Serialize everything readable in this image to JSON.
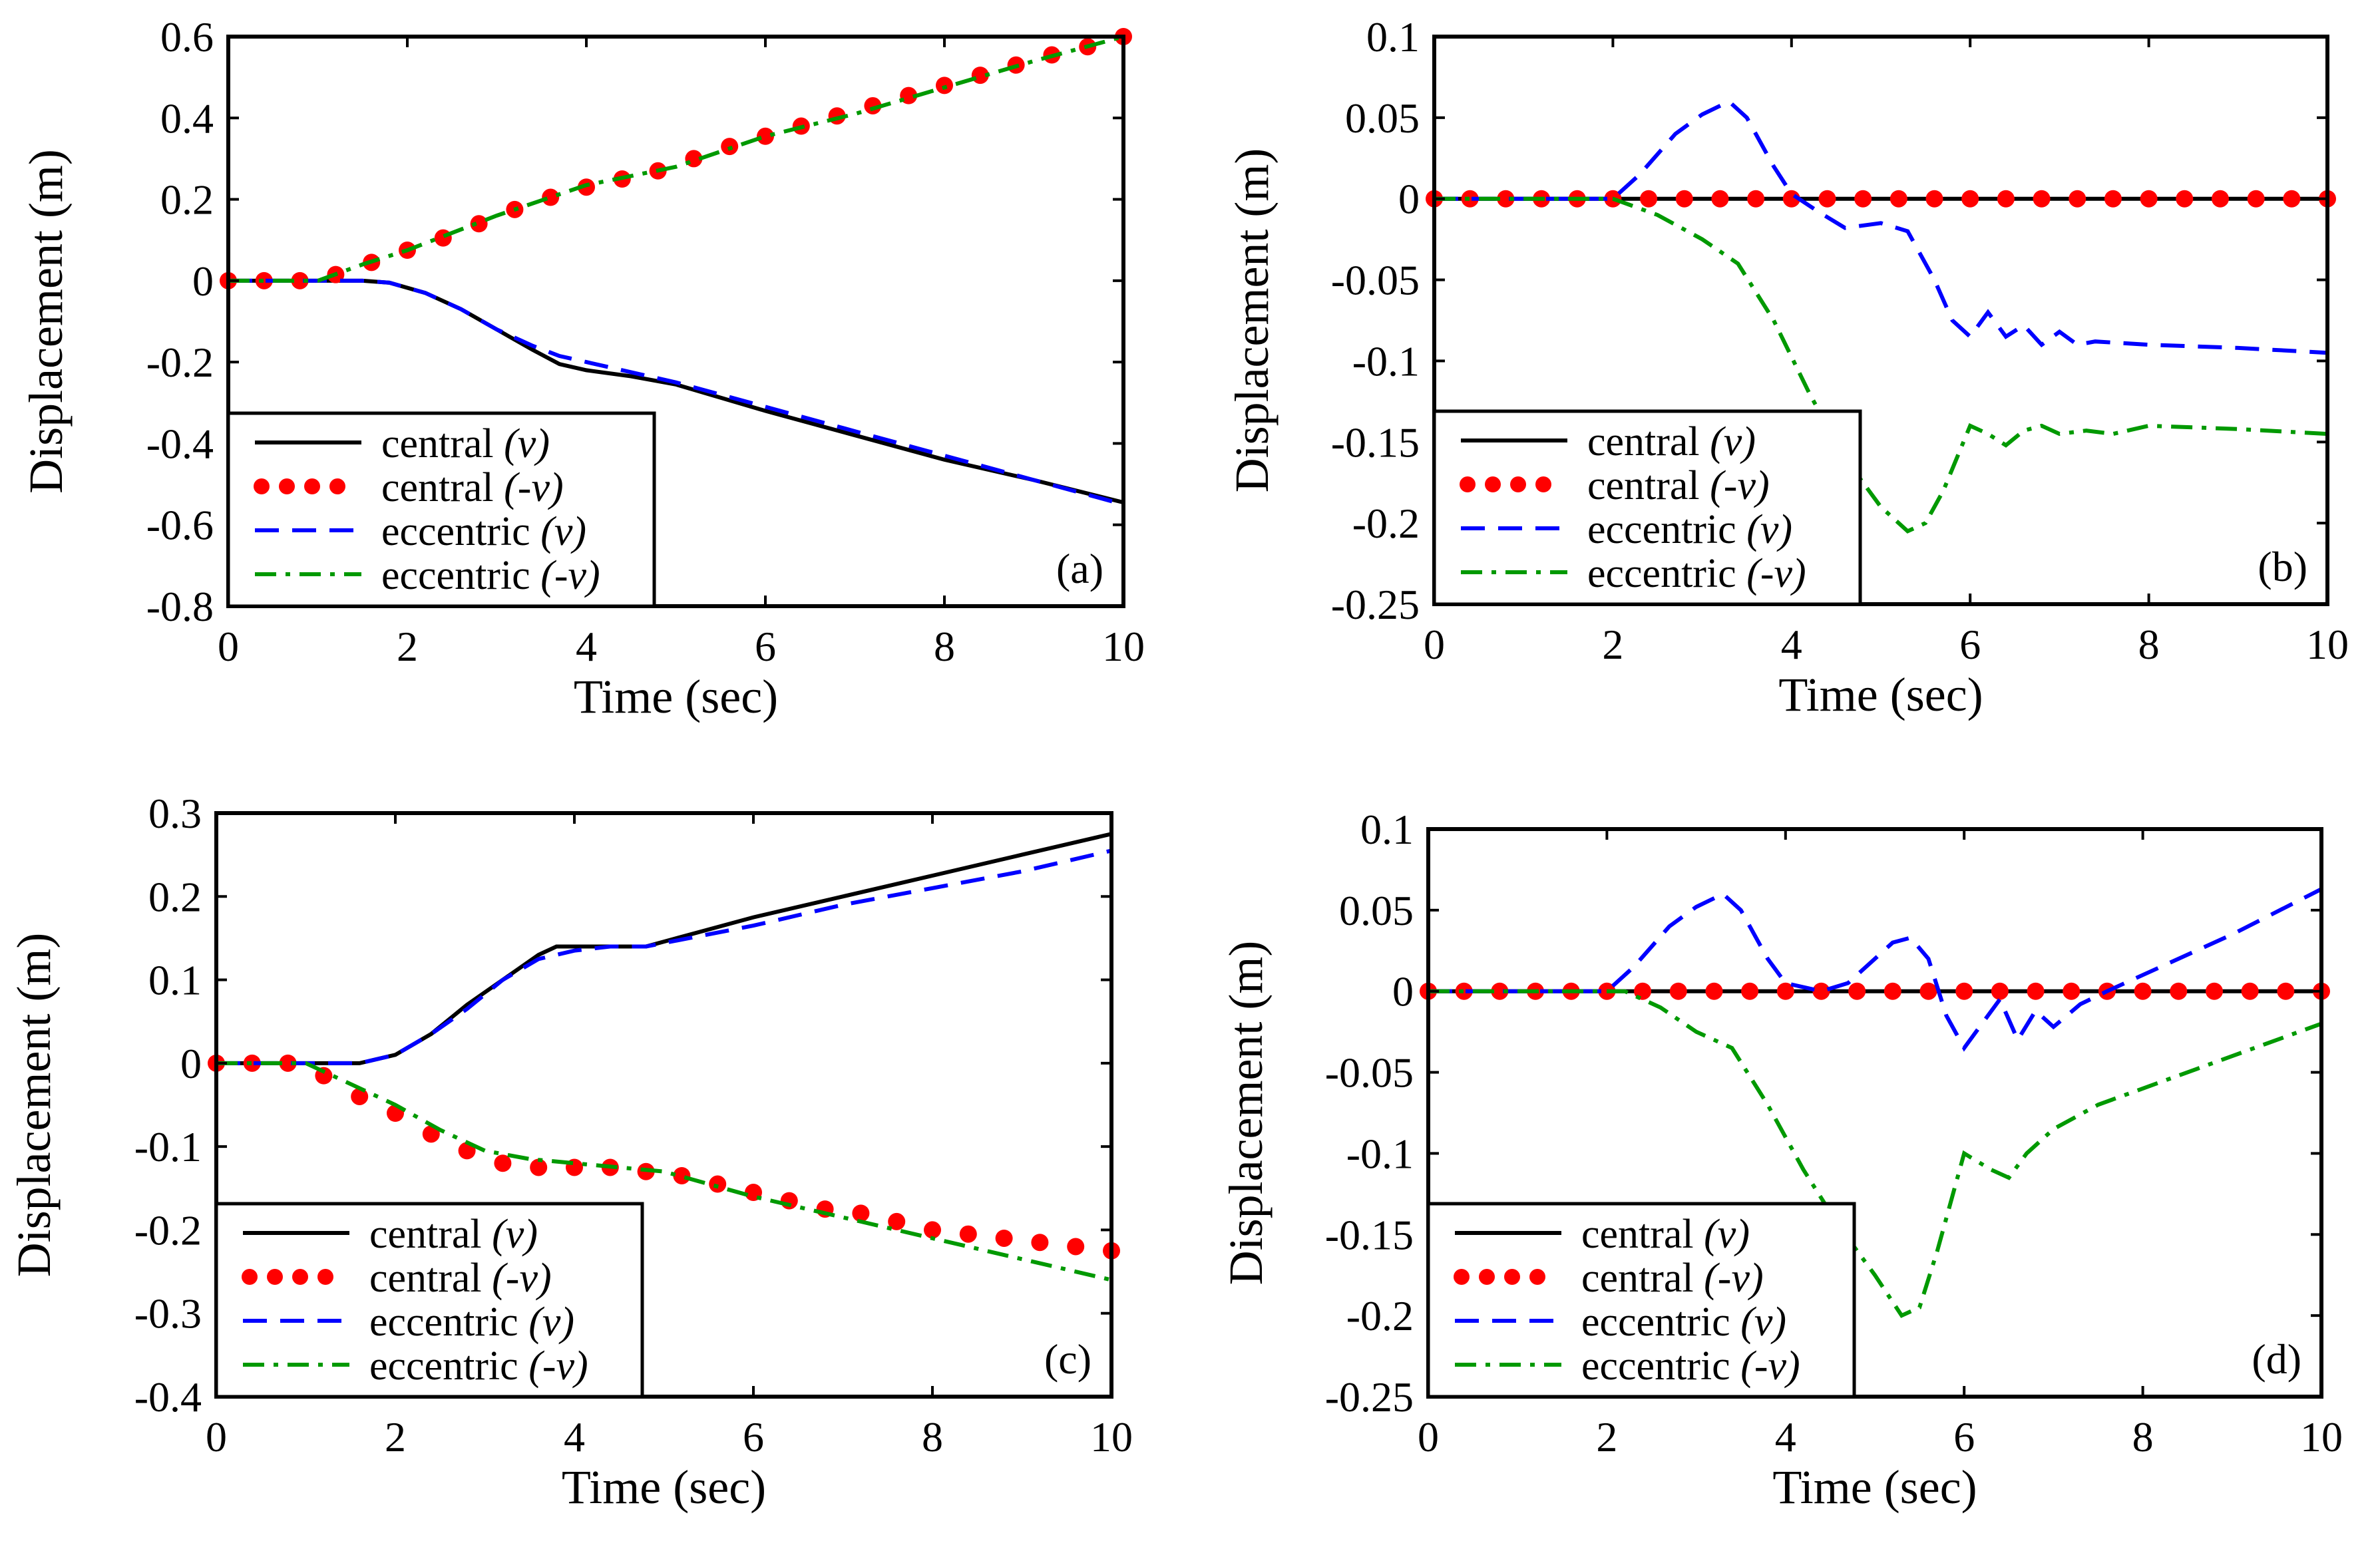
{
  "styles": {
    "central_v": {
      "color": "#000000",
      "kind": "solid"
    },
    "central_neg_v": {
      "color": "#ff0000",
      "kind": "dots"
    },
    "eccentric_v": {
      "color": "#0000ff",
      "kind": "dashed"
    },
    "eccentric_neg_v": {
      "color": "#009900",
      "kind": "dashdot"
    }
  },
  "chart_data": [
    {
      "type": "line",
      "panel_label": "(a)",
      "xlabel": "Time (sec)",
      "ylabel": "Displacement (m)",
      "xlim": [
        0,
        10
      ],
      "ylim": [
        -0.8,
        0.6
      ],
      "xticks": [
        0,
        2,
        4,
        6,
        8,
        10
      ],
      "yticks": [
        -0.8,
        -0.6,
        -0.4,
        -0.2,
        0,
        0.2,
        0.4,
        0.6
      ],
      "ytick_labels": [
        "-0.8",
        "-0.6",
        "-0.4",
        "-0.2",
        "0",
        "0.2",
        "0.4",
        "0.6"
      ],
      "legend": "bottom-left",
      "series": [
        {
          "name": "central",
          "suffix": "(v)",
          "style": "central_v",
          "x": [
            0,
            1.5,
            1.8,
            2.2,
            2.6,
            3.0,
            3.4,
            3.7,
            4.0,
            4.5,
            5.0,
            6.0,
            7.0,
            8.0,
            9.0,
            10.0
          ],
          "y": [
            0,
            0,
            -0.005,
            -0.03,
            -0.07,
            -0.12,
            -0.17,
            -0.205,
            -0.22,
            -0.235,
            -0.255,
            -0.32,
            -0.38,
            -0.44,
            -0.49,
            -0.545
          ]
        },
        {
          "name": "central",
          "suffix": "(-v)",
          "style": "central_neg_v",
          "x": [
            0,
            0.4,
            0.8,
            1.2,
            1.6,
            2.0,
            2.4,
            2.8,
            3.2,
            3.6,
            4.0,
            4.4,
            4.8,
            5.2,
            5.6,
            6.0,
            6.4,
            6.8,
            7.2,
            7.6,
            8.0,
            8.4,
            8.8,
            9.2,
            9.6,
            10.0
          ],
          "y": [
            0,
            0,
            0,
            0.015,
            0.045,
            0.075,
            0.105,
            0.14,
            0.175,
            0.205,
            0.23,
            0.25,
            0.27,
            0.3,
            0.33,
            0.355,
            0.38,
            0.405,
            0.43,
            0.455,
            0.48,
            0.505,
            0.53,
            0.555,
            0.575,
            0.6
          ]
        },
        {
          "name": "eccentric",
          "suffix": "(v)",
          "style": "eccentric_v",
          "x": [
            0,
            1.5,
            1.8,
            2.2,
            2.6,
            3.0,
            3.4,
            3.7,
            4.0,
            4.5,
            5.0,
            6.0,
            7.0,
            8.0,
            9.0,
            10.0
          ],
          "y": [
            0,
            0,
            -0.005,
            -0.03,
            -0.07,
            -0.12,
            -0.16,
            -0.185,
            -0.2,
            -0.225,
            -0.25,
            -0.31,
            -0.37,
            -0.43,
            -0.49,
            -0.55
          ]
        },
        {
          "name": "eccentric",
          "suffix": "(-v)",
          "style": "eccentric_neg_v",
          "x": [
            0,
            1.0,
            1.5,
            2.0,
            3.0,
            4.0,
            5.0,
            6.0,
            7.0,
            8.0,
            9.0,
            10.0
          ],
          "y": [
            0,
            0,
            0.04,
            0.075,
            0.16,
            0.235,
            0.28,
            0.355,
            0.41,
            0.475,
            0.54,
            0.6
          ]
        }
      ]
    },
    {
      "type": "line",
      "panel_label": "(b)",
      "xlabel": "Time (sec)",
      "ylabel": "Displacement (m)",
      "xlim": [
        0,
        10
      ],
      "ylim": [
        -0.25,
        0.1
      ],
      "xticks": [
        0,
        2,
        4,
        6,
        8,
        10
      ],
      "yticks": [
        -0.25,
        -0.2,
        -0.15,
        -0.1,
        -0.05,
        0,
        0.05,
        0.1
      ],
      "ytick_labels": [
        "-0.25",
        "-0.2",
        "-0.15",
        "-0.1",
        "-0.05",
        "0",
        "0.05",
        "0.1"
      ],
      "legend": "bottom-left",
      "series": [
        {
          "name": "central",
          "suffix": "(v)",
          "style": "central_v",
          "x": [
            0,
            10
          ],
          "y": [
            0,
            0
          ]
        },
        {
          "name": "central",
          "suffix": "(-v)",
          "style": "central_neg_v",
          "x": [
            0,
            0.4,
            0.8,
            1.2,
            1.6,
            2.0,
            2.4,
            2.8,
            3.2,
            3.6,
            4.0,
            4.4,
            4.8,
            5.2,
            5.6,
            6.0,
            6.4,
            6.8,
            7.2,
            7.6,
            8.0,
            8.4,
            8.8,
            9.2,
            9.6,
            10.0
          ],
          "y": [
            0,
            0,
            0,
            0,
            0,
            0,
            0,
            0,
            0,
            0,
            0,
            0,
            0,
            0,
            0,
            0,
            0,
            0,
            0,
            0,
            0,
            0,
            0,
            0,
            0,
            0
          ]
        },
        {
          "name": "eccentric",
          "suffix": "(v)",
          "style": "eccentric_v",
          "x": [
            0,
            2.0,
            2.3,
            2.7,
            3.0,
            3.3,
            3.5,
            3.8,
            4.0,
            4.3,
            4.6,
            5.0,
            5.3,
            5.6,
            5.8,
            6.0,
            6.2,
            6.4,
            6.6,
            6.8,
            7.0,
            7.2,
            7.4,
            8.0,
            9.0,
            10.0
          ],
          "y": [
            0,
            0,
            0.015,
            0.04,
            0.052,
            0.06,
            0.05,
            0.02,
            0.003,
            -0.008,
            -0.018,
            -0.015,
            -0.02,
            -0.05,
            -0.075,
            -0.085,
            -0.07,
            -0.085,
            -0.078,
            -0.09,
            -0.082,
            -0.09,
            -0.088,
            -0.09,
            -0.092,
            -0.095
          ]
        },
        {
          "name": "eccentric",
          "suffix": "(-v)",
          "style": "eccentric_neg_v",
          "x": [
            0,
            2.0,
            2.5,
            3.0,
            3.4,
            3.8,
            4.2,
            4.6,
            5.0,
            5.3,
            5.5,
            5.7,
            6.0,
            6.2,
            6.4,
            6.6,
            6.8,
            7.0,
            7.3,
            7.6,
            8.0,
            9.0,
            10.0
          ],
          "y": [
            0,
            0,
            -0.01,
            -0.025,
            -0.04,
            -0.075,
            -0.12,
            -0.16,
            -0.19,
            -0.205,
            -0.2,
            -0.18,
            -0.14,
            -0.145,
            -0.152,
            -0.143,
            -0.14,
            -0.145,
            -0.143,
            -0.145,
            -0.14,
            -0.142,
            -0.145
          ]
        }
      ]
    },
    {
      "type": "line",
      "panel_label": "(c)",
      "xlabel": "Time (sec)",
      "ylabel": "Displacement (m)",
      "xlim": [
        0,
        10
      ],
      "ylim": [
        -0.4,
        0.3
      ],
      "xticks": [
        0,
        2,
        4,
        6,
        8,
        10
      ],
      "yticks": [
        -0.4,
        -0.3,
        -0.2,
        -0.1,
        0,
        0.1,
        0.2,
        0.3
      ],
      "ytick_labels": [
        "-0.4",
        "-0.3",
        "-0.2",
        "-0.1",
        "0",
        "0.1",
        "0.2",
        "0.3"
      ],
      "legend": "bottom-left",
      "series": [
        {
          "name": "central",
          "suffix": "(v)",
          "style": "central_v",
          "x": [
            0,
            1.6,
            2.0,
            2.4,
            2.8,
            3.2,
            3.6,
            3.8,
            4.2,
            4.8,
            6.0,
            7.0,
            8.0,
            9.0,
            10.0
          ],
          "y": [
            0,
            0,
            0.01,
            0.035,
            0.07,
            0.1,
            0.13,
            0.14,
            0.14,
            0.14,
            0.175,
            0.2,
            0.225,
            0.25,
            0.275
          ]
        },
        {
          "name": "central",
          "suffix": "(-v)",
          "style": "central_neg_v",
          "x": [
            0,
            0.4,
            0.8,
            1.2,
            1.6,
            2.0,
            2.4,
            2.8,
            3.2,
            3.6,
            4.0,
            4.4,
            4.8,
            5.2,
            5.6,
            6.0,
            6.4,
            6.8,
            7.2,
            7.6,
            8.0,
            8.4,
            8.8,
            9.2,
            9.6,
            10.0
          ],
          "y": [
            0,
            0,
            0,
            -0.015,
            -0.04,
            -0.06,
            -0.085,
            -0.105,
            -0.12,
            -0.125,
            -0.125,
            -0.125,
            -0.13,
            -0.135,
            -0.145,
            -0.155,
            -0.165,
            -0.175,
            -0.18,
            -0.19,
            -0.2,
            -0.205,
            -0.21,
            -0.215,
            -0.22,
            -0.225
          ]
        },
        {
          "name": "eccentric",
          "suffix": "(v)",
          "style": "eccentric_v",
          "x": [
            0,
            1.6,
            2.0,
            2.4,
            2.8,
            3.2,
            3.6,
            4.0,
            4.4,
            4.8,
            6.0,
            7.0,
            8.0,
            9.0,
            10.0
          ],
          "y": [
            0,
            0,
            0.01,
            0.035,
            0.065,
            0.1,
            0.125,
            0.135,
            0.14,
            0.14,
            0.165,
            0.19,
            0.21,
            0.23,
            0.255
          ]
        },
        {
          "name": "eccentric",
          "suffix": "(-v)",
          "style": "eccentric_neg_v",
          "x": [
            0,
            1.0,
            1.5,
            2.0,
            2.5,
            3.0,
            3.5,
            4.0,
            4.5,
            5.0,
            6.0,
            7.0,
            8.0,
            9.0,
            10.0
          ],
          "y": [
            0,
            0,
            -0.025,
            -0.05,
            -0.08,
            -0.105,
            -0.115,
            -0.12,
            -0.125,
            -0.13,
            -0.16,
            -0.185,
            -0.21,
            -0.235,
            -0.26
          ]
        }
      ]
    },
    {
      "type": "line",
      "panel_label": "(d)",
      "xlabel": "Time (sec)",
      "ylabel": "Displacement (m)",
      "xlim": [
        0,
        10
      ],
      "ylim": [
        -0.25,
        0.1
      ],
      "xticks": [
        0,
        2,
        4,
        6,
        8,
        10
      ],
      "yticks": [
        -0.25,
        -0.2,
        -0.15,
        -0.1,
        -0.05,
        0,
        0.05,
        0.1
      ],
      "ytick_labels": [
        "-0.25",
        "-0.2",
        "-0.15",
        "-0.1",
        "-0.05",
        "0",
        "0.05",
        "0.1"
      ],
      "legend": "bottom-left",
      "series": [
        {
          "name": "central",
          "suffix": "(v)",
          "style": "central_v",
          "x": [
            0,
            10
          ],
          "y": [
            0,
            0
          ]
        },
        {
          "name": "central",
          "suffix": "(-v)",
          "style": "central_neg_v",
          "x": [
            0,
            0.4,
            0.8,
            1.2,
            1.6,
            2.0,
            2.4,
            2.8,
            3.2,
            3.6,
            4.0,
            4.4,
            4.8,
            5.2,
            5.6,
            6.0,
            6.4,
            6.8,
            7.2,
            7.6,
            8.0,
            8.4,
            8.8,
            9.2,
            9.6,
            10.0
          ],
          "y": [
            0,
            0,
            0,
            0,
            0,
            0,
            0,
            0,
            0,
            0,
            0,
            0,
            0,
            0,
            0,
            0,
            0,
            0,
            0,
            0,
            0,
            0,
            0,
            0,
            0,
            0
          ]
        },
        {
          "name": "eccentric",
          "suffix": "(v)",
          "style": "eccentric_v",
          "x": [
            0,
            2.0,
            2.3,
            2.7,
            3.0,
            3.3,
            3.5,
            3.8,
            4.0,
            4.4,
            4.7,
            5.0,
            5.2,
            5.4,
            5.6,
            5.8,
            6.0,
            6.2,
            6.4,
            6.6,
            6.8,
            7.0,
            7.3,
            7.6,
            8.0,
            9.0,
            10.0
          ],
          "y": [
            0,
            0,
            0.015,
            0.04,
            0.052,
            0.06,
            0.05,
            0.02,
            0.005,
            0,
            0.005,
            0.02,
            0.03,
            0.033,
            0.02,
            -0.015,
            -0.035,
            -0.02,
            -0.005,
            -0.03,
            -0.012,
            -0.022,
            -0.008,
            0,
            0.01,
            0.035,
            0.063
          ]
        },
        {
          "name": "eccentric",
          "suffix": "(-v)",
          "style": "eccentric_neg_v",
          "x": [
            0,
            2.2,
            2.6,
            3.0,
            3.4,
            3.8,
            4.2,
            4.6,
            5.0,
            5.3,
            5.5,
            5.7,
            6.0,
            6.3,
            6.5,
            6.7,
            7.0,
            7.5,
            8.0,
            9.0,
            10.0
          ],
          "y": [
            0,
            0,
            -0.01,
            -0.025,
            -0.035,
            -0.07,
            -0.11,
            -0.145,
            -0.175,
            -0.2,
            -0.195,
            -0.16,
            -0.1,
            -0.11,
            -0.115,
            -0.1,
            -0.085,
            -0.07,
            -0.06,
            -0.04,
            -0.02
          ]
        }
      ]
    }
  ]
}
